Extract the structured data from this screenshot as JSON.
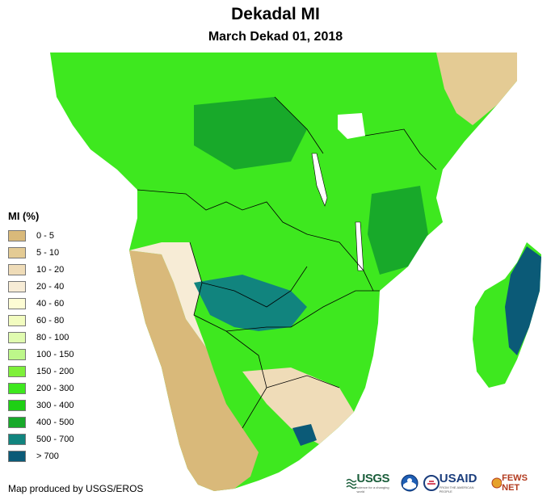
{
  "header": {
    "title": "Dekadal MI",
    "subtitle": "March Dekad 01, 2018"
  },
  "legend": {
    "title": "MI (%)",
    "items": [
      {
        "label": "0 - 5",
        "color": "#d9b97a"
      },
      {
        "label": "5 - 10",
        "color": "#e4cb94"
      },
      {
        "label": "10 - 20",
        "color": "#efdcb8"
      },
      {
        "label": "20 - 40",
        "color": "#f7ecd6"
      },
      {
        "label": "40 - 60",
        "color": "#fdfcd4"
      },
      {
        "label": "60 - 80",
        "color": "#f2fcc0"
      },
      {
        "label": "80 - 100",
        "color": "#e0fbb0"
      },
      {
        "label": "100 - 150",
        "color": "#bdf78a"
      },
      {
        "label": "150 - 200",
        "color": "#7ef03a"
      },
      {
        "label": "200 - 300",
        "color": "#3ee81f"
      },
      {
        "label": "300 - 400",
        "color": "#1ecf14"
      },
      {
        "label": "400 - 500",
        "color": "#18a92a"
      },
      {
        "label": "500 - 700",
        "color": "#11847e"
      },
      {
        "label": "> 700",
        "color": "#0b5a77"
      }
    ]
  },
  "footer": {
    "credit": "Map produced by USGS/EROS"
  },
  "logos": {
    "usgs": "USGS",
    "usgs_tagline": "science for a changing world",
    "usaid": "USAID",
    "usaid_tagline": "FROM THE AMERICAN PEOPLE",
    "fews": "FEWS NET"
  }
}
